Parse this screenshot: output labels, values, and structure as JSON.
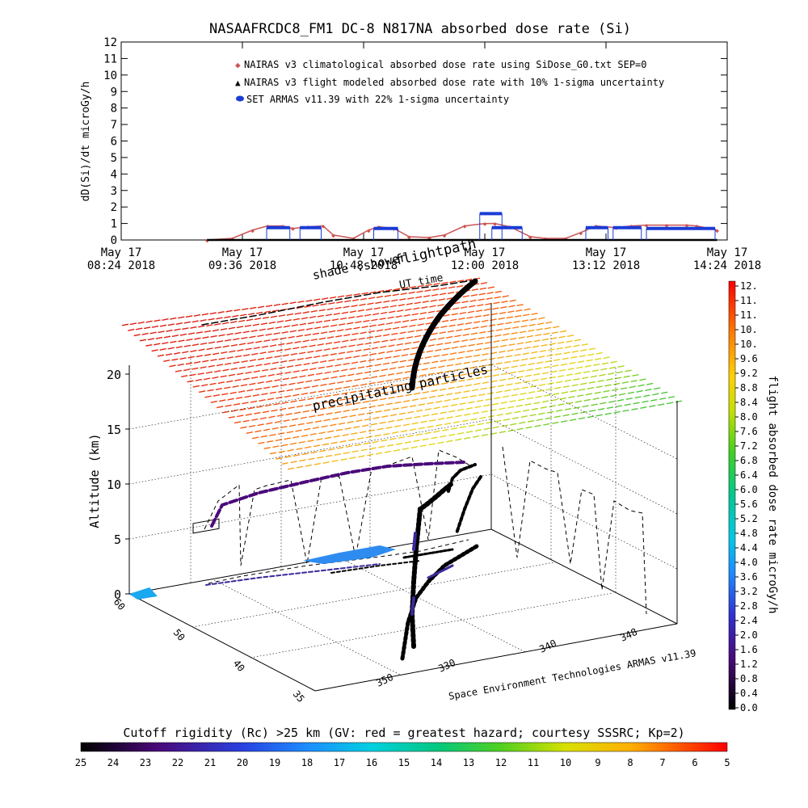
{
  "title": "NASAAFRCDC8_FM1 DC-8   N817NA absorbed dose rate (Si)",
  "top_chart": {
    "ylabel": "dD(Si)/dt microGy/h",
    "x_ticks": [
      {
        "line1": "May 17",
        "line2": "08:24 2018"
      },
      {
        "line1": "May 17",
        "line2": "09:36 2018"
      },
      {
        "line1": "May 17",
        "line2": "10:48 2018"
      },
      {
        "line1": "May 17",
        "line2": "12:00 2018"
      },
      {
        "line1": "May 17",
        "line2": "13:12 2018"
      },
      {
        "line1": "May 17",
        "line2": "14:24 2018"
      }
    ],
    "legend": [
      "NAIRAS v3 climatological absorbed dose rate using SiDose_G0.txt SEP=0",
      "NAIRAS v3 flight modeled absorbed dose rate with 10% 1-sigma uncertainty",
      "SET ARMAS v11.39 with 22% 1-sigma uncertainty"
    ]
  },
  "chart_data": [
    {
      "type": "line",
      "x_unit": "hours UTC, May 17 2018",
      "xlim": [
        8.4,
        14.4
      ],
      "ylim": [
        0,
        12
      ],
      "y_ticks": [
        0,
        1,
        2,
        3,
        4,
        5,
        6,
        7,
        8,
        9,
        10,
        11,
        12
      ],
      "series": [
        {
          "name": "NAIRAS v3 climatological absorbed dose rate using SiDose_G0.txt SEP=0",
          "color": "#cc5555",
          "x": [
            9.25,
            9.5,
            9.7,
            9.85,
            10.0,
            10.1,
            10.25,
            10.4,
            10.5,
            10.7,
            10.85,
            10.95,
            11.1,
            11.25,
            11.45,
            11.6,
            11.8,
            12.0,
            12.1,
            12.25,
            12.45,
            12.6,
            12.8,
            12.95,
            13.1,
            13.3,
            13.45,
            13.6,
            13.8,
            14.0,
            14.1,
            14.3
          ],
          "y": [
            0.0,
            0.1,
            0.6,
            0.85,
            0.85,
            0.7,
            0.8,
            0.85,
            0.3,
            0.1,
            0.6,
            0.8,
            0.7,
            0.2,
            0.15,
            0.3,
            0.85,
            1.0,
            1.0,
            0.8,
            0.2,
            0.1,
            0.1,
            0.45,
            0.85,
            0.75,
            0.85,
            0.9,
            0.9,
            0.9,
            0.85,
            0.6
          ]
        },
        {
          "name": "NAIRAS v3 flight modeled absorbed dose rate with 10% 1-sigma uncertainty",
          "color": "#000000",
          "x": [
            9.25,
            10.0,
            11.0,
            12.0,
            13.0,
            14.3
          ],
          "y": [
            0,
            0,
            0,
            0,
            0,
            0
          ]
        },
        {
          "name": "SET ARMAS v11.39 with 22% 1-sigma uncertainty",
          "color": "#1a3cd6",
          "segments": [
            {
              "x": [
                9.84,
                10.07
              ],
              "y": 0.75
            },
            {
              "x": [
                10.17,
                10.38
              ],
              "y": 0.75
            },
            {
              "x": [
                10.9,
                11.14
              ],
              "y": 0.7
            },
            {
              "x": [
                11.95,
                12.17
              ],
              "y": 1.6
            },
            {
              "x": [
                12.07,
                12.37
              ],
              "y": 0.75
            },
            {
              "x": [
                13.0,
                13.22
              ],
              "y": 0.75
            },
            {
              "x": [
                13.27,
                13.55
              ],
              "y": 0.75
            },
            {
              "x": [
                13.6,
                14.28
              ],
              "y": 0.7
            }
          ]
        }
      ]
    },
    {
      "type": "3d-surface",
      "zlabel": "Altitude (km)",
      "z_ticks": [
        0,
        5,
        10,
        15,
        20
      ],
      "lat_ticks": [
        60,
        50,
        40,
        35
      ],
      "lon_ticks": [
        350,
        330,
        340,
        348
      ],
      "source": "Space Environment Technologies ARMAS v11.39",
      "annotations": [
        "shade",
        ":shower",
        "flightpath",
        "UT time",
        "precipitating particles"
      ],
      "colorbar_right": {
        "label": "flight absorbed dose rate microGy/h",
        "ticks": [
          "12.",
          "11.",
          "11.",
          "10.",
          "10.",
          "9.6",
          "9.2",
          "8.8",
          "8.4",
          "8.0",
          "7.6",
          "7.2",
          "6.8",
          "6.4",
          "6.0",
          "5.6",
          "5.2",
          "4.8",
          "4.4",
          "4.0",
          "3.6",
          "3.2",
          "2.8",
          "2.4",
          "2.0",
          "1.6",
          "1.2",
          "0.8",
          "0.4",
          "0.0"
        ]
      },
      "colorbar_bottom": {
        "label": "Cutoff rigidity (Rc) >25 km (GV: red = greatest hazard; courtesy SSSRC; Kp=2)",
        "ticks": [
          "25",
          "24",
          "23",
          "22",
          "21",
          "20",
          "19",
          "18",
          "17",
          "16",
          "15",
          "14",
          "13",
          "12",
          "11",
          "10",
          "9",
          "8",
          "7",
          "6",
          "5"
        ]
      }
    }
  ]
}
